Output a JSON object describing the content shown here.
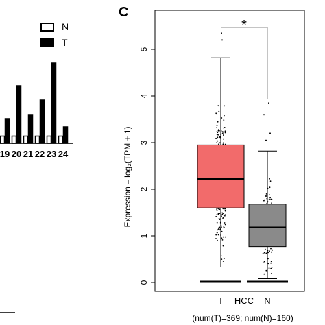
{
  "chart_data": [
    {
      "type": "bar",
      "partial": true,
      "categories": [
        "19",
        "20",
        "21",
        "22",
        "23",
        "24"
      ],
      "legend": {
        "placement": "top-right",
        "entries": [
          "N",
          "T"
        ]
      },
      "series": [
        {
          "name": "N",
          "color": "#ffffff",
          "values": [
            0.35,
            0.35,
            0.35,
            0.35,
            0.35,
            0.35
          ]
        },
        {
          "name": "T",
          "color": "#000000",
          "values": [
            1.2,
            2.8,
            1.4,
            2.1,
            3.9,
            0.8
          ]
        }
      ]
    },
    {
      "type": "box",
      "panel_label": "C",
      "ylabel": "Expression – log₂(TPM + 1)",
      "xlabel": "HCC",
      "footer": "(num(T)=369; num(N)=160)",
      "significance": "*",
      "ylim": [
        0,
        5.5
      ],
      "yticks": [
        "0",
        "1",
        "2",
        "3",
        "4",
        "5"
      ],
      "groups": [
        {
          "name": "T",
          "color": "#f26b6b",
          "whisker_low": 0.33,
          "q1": 1.6,
          "median": 2.22,
          "q3": 2.95,
          "whisker_high": 4.82,
          "n": 369
        },
        {
          "name": "N",
          "color": "#8a8a8a",
          "whisker_low": 0.08,
          "q1": 0.77,
          "median": 1.18,
          "q3": 1.68,
          "whisker_high": 2.82,
          "n": 160
        }
      ],
      "colors": {
        "sig_star": "#e8262b"
      }
    }
  ]
}
